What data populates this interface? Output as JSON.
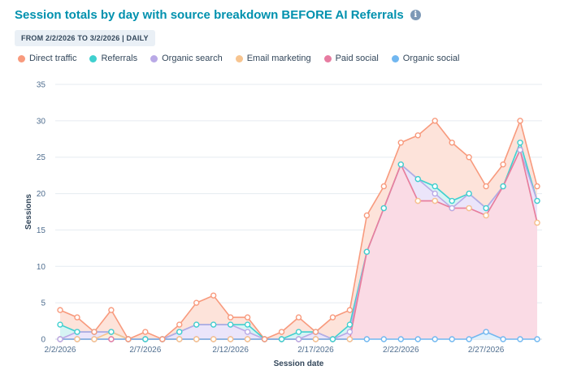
{
  "header": {
    "title": "Session totals by day with source breakdown BEFORE AI Referrals",
    "info_icon": "i",
    "date_badge": "FROM 2/2/2026 TO 3/2/2026 | DAILY"
  },
  "chart_data": {
    "type": "area",
    "stacked": true,
    "title": "Session totals by day with source breakdown BEFORE AI Referrals",
    "xlabel": "Session date",
    "ylabel": "Sessions",
    "ylim": [
      0,
      35
    ],
    "yticks": [
      0,
      5,
      10,
      15,
      20,
      25,
      30,
      35
    ],
    "x": [
      "2/2/2026",
      "2/3/2026",
      "2/4/2026",
      "2/5/2026",
      "2/6/2026",
      "2/7/2026",
      "2/8/2026",
      "2/9/2026",
      "2/10/2026",
      "2/11/2026",
      "2/12/2026",
      "2/13/2026",
      "2/14/2026",
      "2/15/2026",
      "2/16/2026",
      "2/17/2026",
      "2/18/2026",
      "2/19/2026",
      "2/20/2026",
      "2/21/2026",
      "2/22/2026",
      "2/23/2026",
      "2/24/2026",
      "2/25/2026",
      "2/26/2026",
      "2/27/2026",
      "2/28/2026",
      "3/1/2026",
      "3/2/2026"
    ],
    "xtick_labels": [
      {
        "index": 0,
        "label": "2/2/2026"
      },
      {
        "index": 5,
        "label": "2/7/2026"
      },
      {
        "index": 10,
        "label": "2/12/2026"
      },
      {
        "index": 15,
        "label": "2/17/2026"
      },
      {
        "index": 20,
        "label": "2/22/2026"
      },
      {
        "index": 25,
        "label": "2/27/2026"
      }
    ],
    "legend_position": "top-left",
    "grid": true,
    "series": [
      {
        "name": "Direct traffic",
        "color": "#f89a7d",
        "fill": "#fde3da",
        "cumulative": [
          4,
          3,
          1,
          4,
          0,
          1,
          0,
          2,
          5,
          6,
          3,
          3,
          0,
          1,
          3,
          1,
          3,
          4,
          17,
          21,
          27,
          28,
          30,
          27,
          25,
          21,
          24,
          30,
          21
        ]
      },
      {
        "name": "Referrals",
        "color": "#3fd0cf",
        "fill": "#d6f4f4",
        "cumulative": [
          2,
          1,
          1,
          1,
          0,
          0,
          0,
          1,
          2,
          2,
          2,
          2,
          0,
          0,
          1,
          1,
          0,
          2,
          12,
          18,
          24,
          22,
          21,
          19,
          20,
          18,
          21,
          27,
          19
        ]
      },
      {
        "name": "Organic search",
        "color": "#b9a9e6",
        "fill": "#ebe5fa",
        "cumulative": [
          0,
          1,
          1,
          1,
          0,
          0,
          0,
          1,
          2,
          2,
          2,
          1,
          0,
          0,
          0,
          1,
          0,
          1,
          12,
          18,
          24,
          22,
          20,
          18,
          20,
          18,
          21,
          26,
          19
        ]
      },
      {
        "name": "Email marketing",
        "color": "#f7c48f",
        "fill": "#fdefdd",
        "cumulative": [
          0,
          0,
          0,
          1,
          0,
          0,
          0,
          0,
          0,
          0,
          0,
          0,
          0,
          0,
          0,
          0,
          0,
          0,
          12,
          18,
          24,
          19,
          19,
          18,
          18,
          17,
          21,
          26,
          16
        ]
      },
      {
        "name": "Paid social",
        "color": "#e77ca1",
        "fill": "#fadbe5",
        "cumulative": [
          0,
          0,
          0,
          0,
          0,
          0,
          0,
          0,
          0,
          0,
          0,
          0,
          0,
          0,
          0,
          0,
          0,
          0,
          12,
          18,
          24,
          19,
          19,
          18,
          18,
          17,
          21,
          26,
          16
        ]
      },
      {
        "name": "Organic social",
        "color": "#71b7f0",
        "fill": "#e0f0fc",
        "cumulative": [
          0,
          0,
          0,
          0,
          0,
          0,
          0,
          0,
          0,
          0,
          0,
          0,
          0,
          0,
          0,
          0,
          0,
          0,
          0,
          0,
          0,
          0,
          0,
          0,
          0,
          1,
          0,
          0,
          0
        ]
      }
    ]
  }
}
